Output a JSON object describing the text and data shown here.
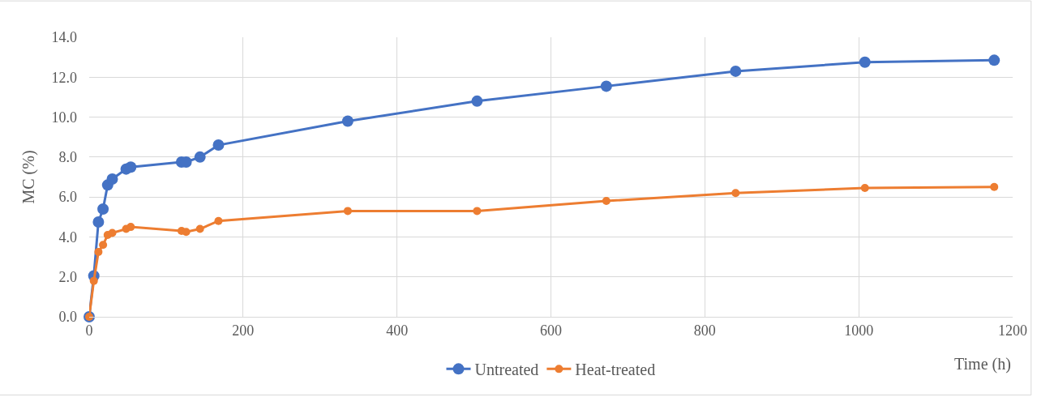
{
  "chart_data": {
    "type": "line",
    "xlabel": "Time (h)",
    "ylabel": "MC (%)",
    "x": [
      0,
      6,
      12,
      18,
      24,
      30,
      48,
      54,
      120,
      126,
      144,
      168,
      336,
      504,
      672,
      840,
      1008,
      1176
    ],
    "series": [
      {
        "name": "Untreated",
        "color": "#4472c4",
        "values": [
          0,
          2.05,
          4.75,
          5.4,
          6.6,
          6.9,
          7.4,
          7.5,
          7.75,
          7.75,
          8.0,
          8.6,
          9.8,
          10.8,
          11.55,
          12.3,
          12.75,
          12.85
        ]
      },
      {
        "name": "Heat-treated",
        "color": "#ed7d31",
        "values": [
          0,
          1.8,
          3.25,
          3.6,
          4.1,
          4.2,
          4.4,
          4.5,
          4.3,
          4.25,
          4.4,
          4.8,
          5.3,
          5.3,
          5.8,
          6.2,
          6.45,
          6.5
        ]
      }
    ],
    "xlim": [
      0,
      1200
    ],
    "xticks": [
      0,
      200,
      400,
      600,
      800,
      1000,
      1200
    ],
    "ylim": [
      0,
      14
    ],
    "yticks": [
      {
        "value": 0,
        "label": "0.0"
      },
      {
        "value": 2,
        "label": "2.0"
      },
      {
        "value": 4,
        "label": "4.0"
      },
      {
        "value": 6,
        "label": "6.0"
      },
      {
        "value": 8,
        "label": "8.0"
      },
      {
        "value": 10,
        "label": "10.0"
      },
      {
        "value": 12,
        "label": "12.0"
      },
      {
        "value": 14,
        "label": "14.0"
      }
    ],
    "grid": true,
    "legend": "bottom",
    "marker": "circle",
    "line_style": "solid"
  }
}
